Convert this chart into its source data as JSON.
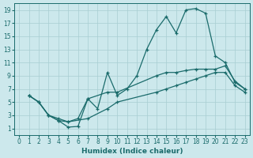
{
  "xlabel": "Humidex (Indice chaleur)",
  "bg_color": "#cce8ec",
  "grid_color": "#a8cdd2",
  "line_color": "#1a6b6b",
  "xlim": [
    -0.5,
    23.5
  ],
  "ylim": [
    0,
    20
  ],
  "xticks": [
    0,
    1,
    2,
    3,
    4,
    5,
    6,
    7,
    8,
    9,
    10,
    11,
    12,
    13,
    14,
    15,
    16,
    17,
    18,
    19,
    20,
    21,
    22,
    23
  ],
  "yticks": [
    1,
    3,
    5,
    7,
    9,
    11,
    13,
    15,
    17,
    19
  ],
  "line1_x": [
    1,
    2,
    3,
    4,
    5,
    6,
    7,
    8,
    9,
    10,
    11,
    12,
    13,
    14,
    15,
    16,
    17,
    18,
    19,
    20,
    21,
    22,
    23
  ],
  "line1_y": [
    6,
    5,
    3,
    2.2,
    1.2,
    1.3,
    5.5,
    4,
    9.5,
    6,
    7,
    9,
    13,
    16,
    18,
    15.5,
    19,
    19.2,
    18.5,
    12,
    11,
    8,
    7
  ],
  "line2_x": [
    1,
    2,
    3,
    4,
    5,
    6,
    7,
    9,
    10,
    14,
    15,
    16,
    17,
    18,
    19,
    20,
    21,
    22,
    23
  ],
  "line2_y": [
    6,
    5,
    3,
    2.5,
    2,
    2.5,
    5.5,
    6.5,
    6.5,
    9,
    9.5,
    9.5,
    9.8,
    10,
    10,
    10,
    10.5,
    8.2,
    7
  ],
  "line3_x": [
    1,
    2,
    3,
    4,
    5,
    7,
    9,
    10,
    14,
    15,
    16,
    17,
    18,
    19,
    20,
    21,
    22,
    23
  ],
  "line3_y": [
    6,
    5,
    3,
    2.2,
    2,
    2.5,
    4,
    5,
    6.5,
    7,
    7.5,
    8,
    8.5,
    9,
    9.5,
    9.5,
    7.5,
    6.5
  ]
}
